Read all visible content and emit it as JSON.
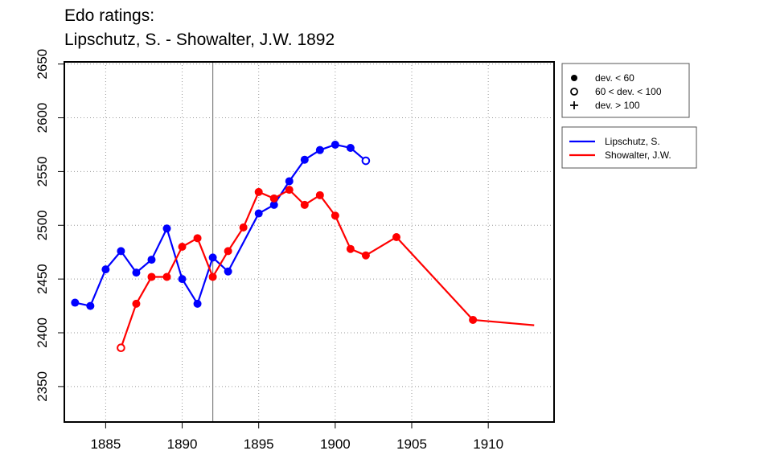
{
  "chart_data": {
    "type": "line",
    "title": "Edo ratings:",
    "subtitle": "Lipschutz, S. - Showalter, J.W. 1892",
    "xlabel": "",
    "ylabel": "",
    "xlim": [
      1882.3,
      1914.3
    ],
    "ylim": [
      2317,
      2652
    ],
    "x_ticks": [
      1885,
      1890,
      1895,
      1900,
      1905,
      1910
    ],
    "y_ticks": [
      2350,
      2400,
      2450,
      2500,
      2550,
      2600,
      2650
    ],
    "grid": true,
    "marker_line_year": 1892,
    "symbol_legend": [
      {
        "label": "dev. < 60",
        "symbol": "filled-circle"
      },
      {
        "label": "60 < dev. < 100",
        "symbol": "open-circle"
      },
      {
        "label": "dev. > 100",
        "symbol": "plus"
      }
    ],
    "legend_position": "right",
    "series": [
      {
        "name": "Lipschutz, S.",
        "color": "#0000ff",
        "points": [
          {
            "x": 1883,
            "y": 2428,
            "dev": "low"
          },
          {
            "x": 1884,
            "y": 2425,
            "dev": "low"
          },
          {
            "x": 1885,
            "y": 2459,
            "dev": "low"
          },
          {
            "x": 1886,
            "y": 2476,
            "dev": "low"
          },
          {
            "x": 1887,
            "y": 2456,
            "dev": "low"
          },
          {
            "x": 1888,
            "y": 2468,
            "dev": "low"
          },
          {
            "x": 1889,
            "y": 2497,
            "dev": "low"
          },
          {
            "x": 1890,
            "y": 2450,
            "dev": "low"
          },
          {
            "x": 1891,
            "y": 2427,
            "dev": "low"
          },
          {
            "x": 1892,
            "y": 2470,
            "dev": "low"
          },
          {
            "x": 1893,
            "y": 2457,
            "dev": "low"
          },
          {
            "x": 1895,
            "y": 2511,
            "dev": "low"
          },
          {
            "x": 1896,
            "y": 2519,
            "dev": "low"
          },
          {
            "x": 1897,
            "y": 2541,
            "dev": "low"
          },
          {
            "x": 1898,
            "y": 2561,
            "dev": "low"
          },
          {
            "x": 1899,
            "y": 2570,
            "dev": "low"
          },
          {
            "x": 1900,
            "y": 2575,
            "dev": "low"
          },
          {
            "x": 1901,
            "y": 2572,
            "dev": "low"
          },
          {
            "x": 1902,
            "y": 2560,
            "dev": "mid"
          }
        ]
      },
      {
        "name": "Showalter, J.W.",
        "color": "#ff0000",
        "points": [
          {
            "x": 1886,
            "y": 2386,
            "dev": "mid"
          },
          {
            "x": 1887,
            "y": 2427,
            "dev": "low"
          },
          {
            "x": 1888,
            "y": 2452,
            "dev": "low"
          },
          {
            "x": 1889,
            "y": 2452,
            "dev": "low"
          },
          {
            "x": 1890,
            "y": 2480,
            "dev": "low"
          },
          {
            "x": 1891,
            "y": 2488,
            "dev": "low"
          },
          {
            "x": 1892,
            "y": 2452,
            "dev": "low"
          },
          {
            "x": 1893,
            "y": 2476,
            "dev": "low"
          },
          {
            "x": 1894,
            "y": 2498,
            "dev": "low"
          },
          {
            "x": 1895,
            "y": 2531,
            "dev": "low"
          },
          {
            "x": 1896,
            "y": 2525,
            "dev": "low"
          },
          {
            "x": 1897,
            "y": 2533,
            "dev": "low"
          },
          {
            "x": 1898,
            "y": 2519,
            "dev": "low"
          },
          {
            "x": 1899,
            "y": 2528,
            "dev": "low"
          },
          {
            "x": 1900,
            "y": 2509,
            "dev": "low"
          },
          {
            "x": 1901,
            "y": 2478,
            "dev": "low"
          },
          {
            "x": 1902,
            "y": 2472,
            "dev": "low"
          },
          {
            "x": 1904,
            "y": 2489,
            "dev": "low"
          },
          {
            "x": 1909,
            "y": 2412,
            "dev": "low"
          },
          {
            "x": 1913,
            "y": 2407,
            "dev": "none"
          }
        ]
      }
    ]
  }
}
